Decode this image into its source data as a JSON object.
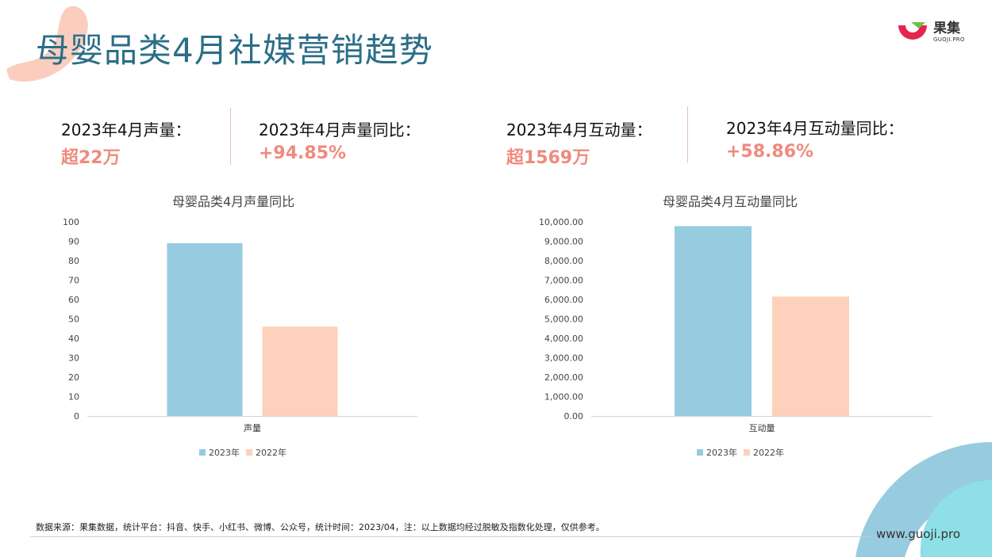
{
  "title": "母婴品类4月社媒营销趋势",
  "logo": {
    "name": "果集",
    "sub": "GUOJI.PRO"
  },
  "stats": [
    {
      "label": "2023年4月声量：",
      "value": "超22万"
    },
    {
      "label": "2023年4月声量同比：",
      "value": "+94.85%"
    },
    {
      "label": "2023年4月互动量：",
      "value": "超1569万"
    },
    {
      "label": "2023年4月互动量同比：",
      "value": "+58.86%"
    }
  ],
  "colors": {
    "series_2023": "#97cbe0",
    "series_2022": "#fdd1bb",
    "accent": "#f08a7c",
    "title": "#2b6e88"
  },
  "chart_data": [
    {
      "type": "bar",
      "title": "母婴品类4月声量同比",
      "categories": [
        "声量"
      ],
      "series": [
        {
          "name": "2023年",
          "values": [
            89
          ]
        },
        {
          "name": "2022年",
          "values": [
            46
          ]
        }
      ],
      "ylim": [
        0,
        100
      ],
      "yticks": [
        "0",
        "10",
        "20",
        "30",
        "40",
        "50",
        "60",
        "70",
        "80",
        "90",
        "100"
      ],
      "legend": "bottom"
    },
    {
      "type": "bar",
      "title": "母婴品类4月互动量同比",
      "categories": [
        "互动量"
      ],
      "series": [
        {
          "name": "2023年",
          "values": [
            9780
          ]
        },
        {
          "name": "2022年",
          "values": [
            6150
          ]
        }
      ],
      "ylim": [
        0,
        10000
      ],
      "yticks": [
        "0.00",
        "1,000.00",
        "2,000.00",
        "3,000.00",
        "4,000.00",
        "5,000.00",
        "6,000.00",
        "7,000.00",
        "8,000.00",
        "9,000.00",
        "10,000.00"
      ],
      "legend": "bottom"
    }
  ],
  "footnote": "数据来源：果集数据，统计平台：抖音、快手、小红书、微博、公众号，统计时间：2023/04，注：以上数据均经过脱敏及指数化处理，仅供参考。",
  "website": "www.guoji.pro"
}
